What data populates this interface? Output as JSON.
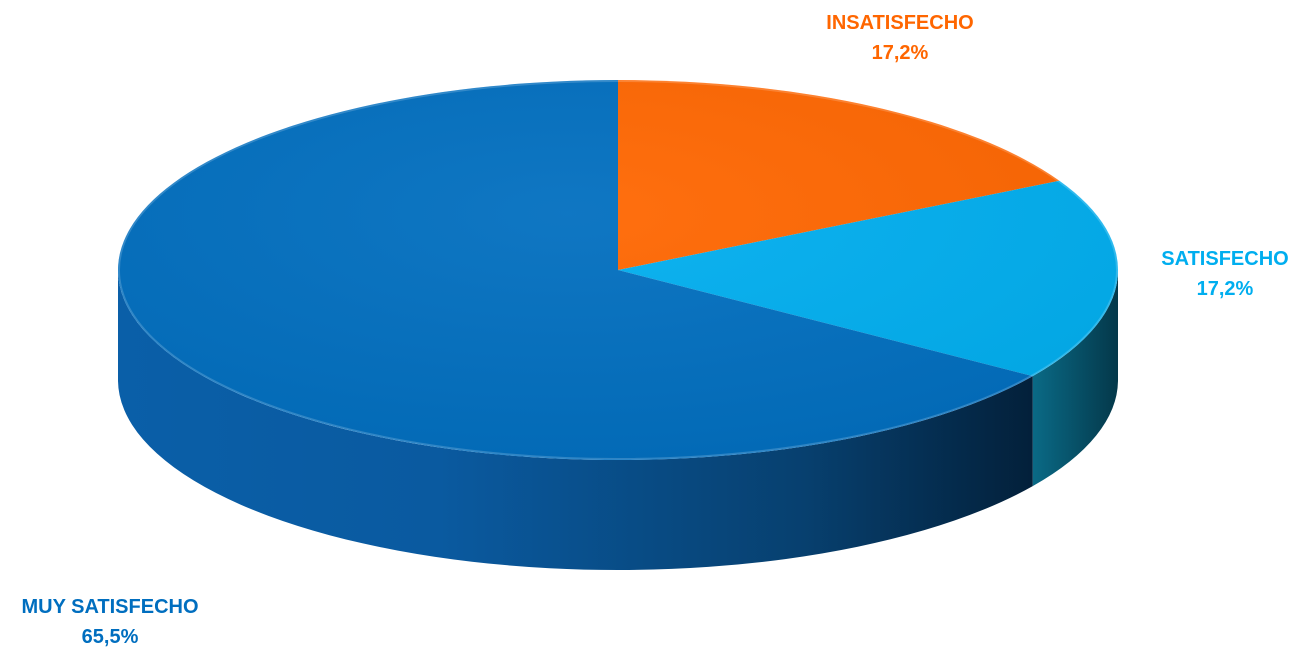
{
  "chart_data": {
    "type": "pie",
    "style": "3d",
    "legend": "none",
    "slices": [
      {
        "label": "INSATISFECHO",
        "value": 17.2,
        "display": "17,2%",
        "color": "#FF6600"
      },
      {
        "label": "SATISFECHO",
        "value": 17.2,
        "display": "17,2%",
        "color": "#00AEEF"
      },
      {
        "label": "MUY SATISFECHO",
        "value": 65.5,
        "display": "65,5%",
        "color": "#006EBF"
      }
    ]
  }
}
